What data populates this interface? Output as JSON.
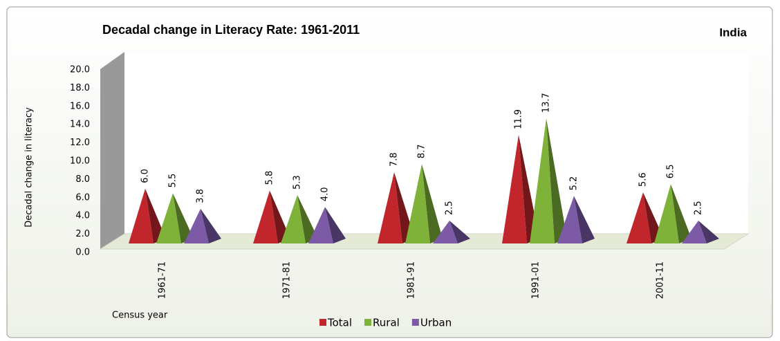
{
  "chart_data": {
    "type": "pyramid",
    "title": "Decadal change in Literacy Rate: 1961-2011",
    "annotation": "India",
    "y_label": "Decadal change in literacy",
    "x_label": "Census year",
    "categories": [
      "1961-71",
      "1971-81",
      "1981-91",
      "1991-01",
      "2001-11"
    ],
    "series": [
      {
        "name": "Total",
        "color": "#c0262c",
        "values": [
          6.0,
          5.8,
          7.8,
          11.9,
          5.6
        ],
        "value_labels": [
          "6.0",
          "5.8",
          "7.8",
          "11.9",
          "5.6"
        ]
      },
      {
        "name": "Rural",
        "color": "#7fb239",
        "values": [
          5.5,
          5.3,
          8.7,
          13.7,
          6.5
        ],
        "value_labels": [
          "5.5",
          "5.3",
          "8.7",
          "13.7",
          "6.5"
        ]
      },
      {
        "name": "Urban",
        "color": "#7c5aa6",
        "values": [
          3.8,
          4.0,
          2.5,
          5.2,
          2.5
        ],
        "value_labels": [
          "3.8",
          "4.0",
          "2.5",
          "5.2",
          "2.5"
        ]
      }
    ],
    "ylim": [
      0,
      20
    ],
    "yticks": [
      {
        "value": 0,
        "label": "0.0"
      },
      {
        "value": 2,
        "label": "2.0"
      },
      {
        "value": 4,
        "label": "4.0"
      },
      {
        "value": 6,
        "label": "6.0"
      },
      {
        "value": 8,
        "label": "8.0"
      },
      {
        "value": 10,
        "label": "10.0"
      },
      {
        "value": 12,
        "label": "12.0"
      },
      {
        "value": 14,
        "label": "14.0"
      },
      {
        "value": 16,
        "label": "16.0"
      },
      {
        "value": 18,
        "label": "18.0"
      },
      {
        "value": 20,
        "label": "20.0"
      }
    ],
    "grid": false,
    "legend": "bottom"
  }
}
